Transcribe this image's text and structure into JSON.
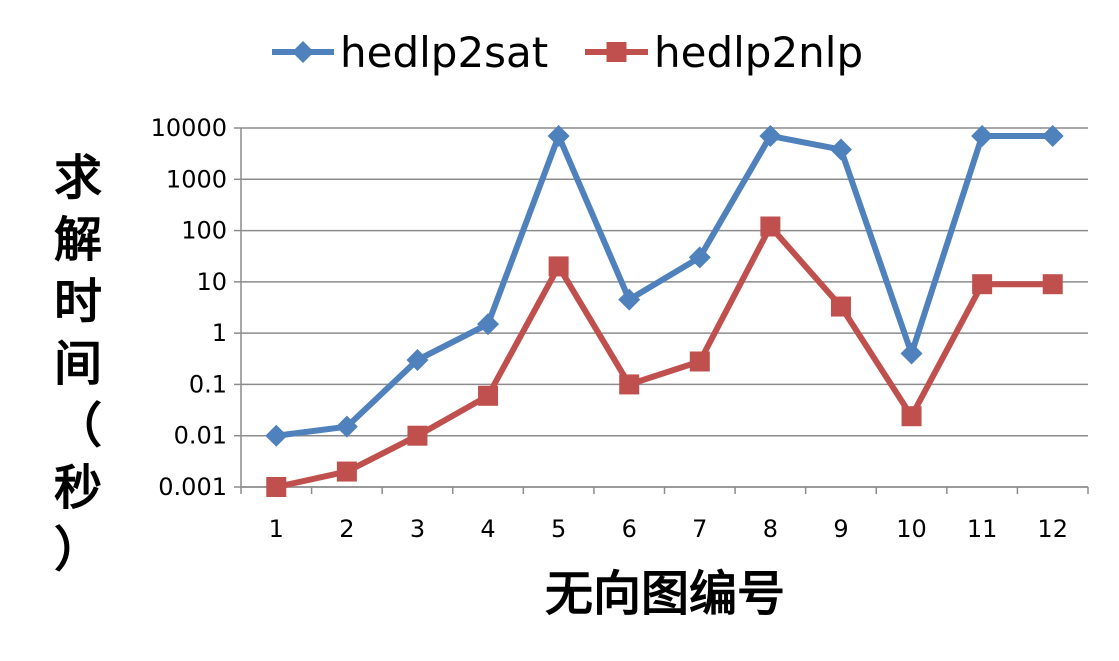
{
  "chart_data": {
    "type": "line",
    "yscale": "log",
    "title": "",
    "xlabel": "无向图编号",
    "ylabel": "求解时间（秒）",
    "ylabel_chars": [
      "求",
      "解",
      "时",
      "间",
      "（",
      "秒",
      "）"
    ],
    "categories": [
      "1",
      "2",
      "3",
      "4",
      "5",
      "6",
      "7",
      "8",
      "9",
      "10",
      "11",
      "12"
    ],
    "ylim": [
      0.001,
      10000
    ],
    "yticks": [
      0.001,
      0.01,
      0.1,
      1,
      10,
      100,
      1000,
      10000
    ],
    "ytick_labels": [
      "0.001",
      "0.01",
      "0.1",
      "1",
      "10",
      "100",
      "1000",
      "10000"
    ],
    "grid": true,
    "legend_position": "top",
    "series": [
      {
        "name": "hedlp2sat",
        "color": "#4F81BD",
        "marker": "diamond",
        "values": [
          0.01,
          0.015,
          0.3,
          1.5,
          7000,
          4.5,
          30,
          7000,
          3800,
          0.4,
          7000,
          7000
        ]
      },
      {
        "name": "hedlp2nlp",
        "color": "#C0504D",
        "marker": "square",
        "values": [
          0.001,
          0.002,
          0.01,
          0.06,
          20,
          0.1,
          0.28,
          120,
          3.3,
          0.024,
          9,
          9
        ]
      }
    ]
  }
}
